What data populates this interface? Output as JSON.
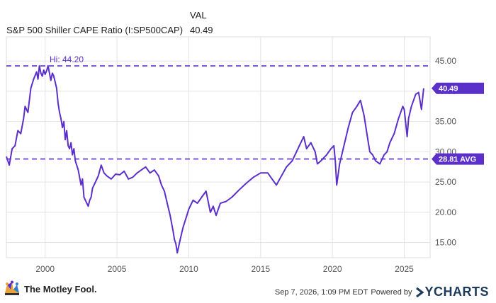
{
  "header": {
    "col_label": "VAL",
    "series_name": "S&P 500 Shiller CAPE Ratio (I:SP500CAP)",
    "current_value": "40.49"
  },
  "colors": {
    "line": "#5b2fc9",
    "flag": "#5b2fc9",
    "grid": "#e3e3e3",
    "axis_text": "#555555"
  },
  "chart_data": {
    "type": "line",
    "title": "S&P 500 Shiller CAPE Ratio (I:SP500CAP)",
    "xlabel": "",
    "ylabel": "",
    "xlim": [
      1997.3,
      2026.8
    ],
    "ylim": [
      12.5,
      49.0
    ],
    "x_ticks": [
      2000,
      2005,
      2010,
      2015,
      2020,
      2025
    ],
    "x_tick_labels": [
      "2000",
      "2005",
      "2010",
      "2015",
      "2020",
      "2025"
    ],
    "y_ticks": [
      15,
      20,
      25,
      30,
      35,
      40,
      45
    ],
    "y_tick_labels": [
      "15.00",
      "20.00",
      "25.00",
      "30.00",
      "35.00",
      "40.00",
      "45.00"
    ],
    "grid": true,
    "reference_lines": [
      {
        "label": "Hi: 44.20",
        "value": 44.2
      },
      {
        "label": "28.81 AVG",
        "value": 28.81
      }
    ],
    "last_value_label": "40.49",
    "series": [
      {
        "x": [
          1997.3,
          1997.5,
          1997.7,
          1997.9,
          1998.1,
          1998.3,
          1998.5,
          1998.6,
          1998.8,
          1999.0,
          1999.2,
          1999.4,
          1999.5,
          1999.6,
          1999.7,
          1999.8,
          1999.9,
          2000.0,
          2000.1,
          2000.2,
          2000.3,
          2000.4,
          2000.5,
          2000.6,
          2000.7,
          2000.8,
          2000.9,
          2001.0,
          2001.1,
          2001.2,
          2001.3,
          2001.4,
          2001.5,
          2001.6,
          2001.7,
          2001.8,
          2001.9,
          2002.0,
          2002.1,
          2002.3,
          2002.5,
          2002.6,
          2002.7,
          2002.8,
          2002.9,
          2003.0,
          2003.1,
          2003.2,
          2003.3,
          2003.5,
          2003.7,
          2003.9,
          2004.1,
          2004.3,
          2004.6,
          2004.9,
          2005.2,
          2005.5,
          2005.8,
          2006.1,
          2006.4,
          2006.7,
          2007.0,
          2007.3,
          2007.6,
          2007.9,
          2008.1,
          2008.3,
          2008.5,
          2008.7,
          2008.9,
          2009.0,
          2009.1,
          2009.2,
          2009.4,
          2009.6,
          2009.8,
          2010.0,
          2010.3,
          2010.6,
          2010.9,
          2011.2,
          2011.5,
          2011.7,
          2011.9,
          2012.2,
          2012.6,
          2013.0,
          2013.5,
          2014.0,
          2014.5,
          2015.0,
          2015.5,
          2015.8,
          2016.1,
          2016.4,
          2016.8,
          2017.2,
          2017.6,
          2018.0,
          2018.2,
          2018.5,
          2018.8,
          2018.95,
          2019.2,
          2019.6,
          2019.9,
          2020.1,
          2020.2,
          2020.3,
          2020.5,
          2020.8,
          2021.1,
          2021.4,
          2021.7,
          2021.95,
          2022.2,
          2022.4,
          2022.6,
          2022.8,
          2023.0,
          2023.3,
          2023.6,
          2023.8,
          2024.0,
          2024.3,
          2024.6,
          2024.9,
          2025.0,
          2025.2,
          2025.3,
          2025.5,
          2025.8,
          2026.0,
          2026.2,
          2026.35
        ],
        "y": [
          29.2,
          27.8,
          30.5,
          31.0,
          33.5,
          33.0,
          35.5,
          37.5,
          36.5,
          40.5,
          42.0,
          43.2,
          42.0,
          44.2,
          43.0,
          42.5,
          43.5,
          42.8,
          43.4,
          44.2,
          43.0,
          41.8,
          43.0,
          42.5,
          41.5,
          40.5,
          38.0,
          36.5,
          35.5,
          34.0,
          35.0,
          32.0,
          33.5,
          31.0,
          30.5,
          31.5,
          29.5,
          30.5,
          28.5,
          27.0,
          24.5,
          25.5,
          22.5,
          22.0,
          21.5,
          21.0,
          22.0,
          22.5,
          24.0,
          25.0,
          26.0,
          27.8,
          26.5,
          26.0,
          25.5,
          26.3,
          26.2,
          26.8,
          25.5,
          25.8,
          26.5,
          27.0,
          27.5,
          26.5,
          27.0,
          26.0,
          24.5,
          23.5,
          21.5,
          19.5,
          17.0,
          15.5,
          14.8,
          13.3,
          15.5,
          17.5,
          19.0,
          20.5,
          22.0,
          21.5,
          22.5,
          23.5,
          20.0,
          21.0,
          19.5,
          21.5,
          21.8,
          22.5,
          23.7,
          24.8,
          25.8,
          26.5,
          26.5,
          25.5,
          24.5,
          25.8,
          27.5,
          28.5,
          30.5,
          32.5,
          30.5,
          31.5,
          30.0,
          28.0,
          28.5,
          29.5,
          30.5,
          31.0,
          28.5,
          24.5,
          28.0,
          31.0,
          34.0,
          36.5,
          37.5,
          38.5,
          36.0,
          33.0,
          30.0,
          29.5,
          28.5,
          28.0,
          29.5,
          30.0,
          31.5,
          33.0,
          35.5,
          37.5,
          37.0,
          32.5,
          35.5,
          37.5,
          39.5,
          39.8,
          37.0,
          40.49
        ]
      }
    ]
  },
  "footer": {
    "brand_left": "The Motley Fool.",
    "timestamp": "Sep 7, 2026, 1:09 PM EDT",
    "powered_by": "Powered by",
    "brand_right": "YCHARTS"
  }
}
